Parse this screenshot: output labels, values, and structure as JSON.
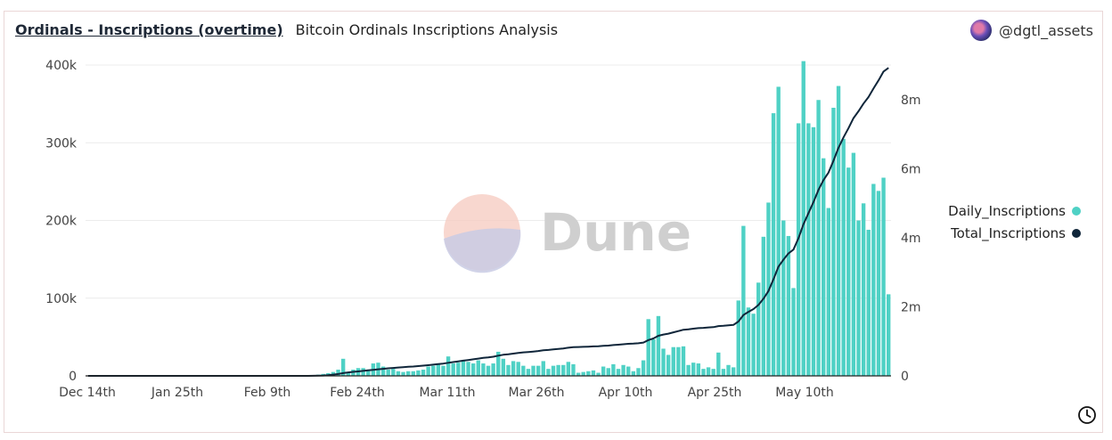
{
  "header": {
    "query_title": "Ordinals - Inscriptions (overtime)",
    "subtitle": "Bitcoin Ordinals Inscriptions Analysis",
    "author": "@dgtl_assets"
  },
  "watermark": "Dune",
  "colors": {
    "bar": "#4fd1c5",
    "line": "#10263a",
    "grid": "#ececec"
  },
  "icons": {
    "footer": "clock-icon"
  },
  "chart_data": {
    "type": "bar",
    "x_tick_labels": [
      "Dec 14th",
      "Jan 25th",
      "Feb 9th",
      "Feb 24th",
      "Mar 11th",
      "Mar 26th",
      "Apr 10th",
      "Apr 25th",
      "May 10th"
    ],
    "y_left": {
      "ticks": [
        0,
        100000,
        200000,
        300000,
        400000
      ],
      "tick_labels": [
        "0",
        "100k",
        "200k",
        "300k",
        "400k"
      ],
      "ylim": [
        0,
        400000
      ]
    },
    "y_right": {
      "ticks": [
        0,
        2000000,
        4000000,
        6000000,
        8000000
      ],
      "tick_labels": [
        "0",
        "2m",
        "4m",
        "6m",
        "8m"
      ],
      "ylim": [
        0,
        9000000
      ]
    },
    "legend": {
      "position": "right",
      "items": [
        "Daily_Inscriptions",
        "Total_Inscriptions"
      ]
    },
    "grid": true,
    "series": [
      {
        "name": "Daily_Inscriptions",
        "type": "bar",
        "axis": "left",
        "values": [
          0,
          0,
          0,
          0,
          0,
          0,
          0,
          0,
          0,
          0,
          0,
          0,
          0,
          0,
          0,
          0,
          0,
          0,
          0,
          0,
          0,
          0,
          0,
          0,
          0,
          0,
          0,
          0,
          0,
          0,
          0,
          0,
          0,
          0,
          0,
          0,
          0,
          0,
          0,
          0,
          0,
          0,
          0,
          0,
          200,
          800,
          1500,
          2500,
          3500,
          5000,
          8000,
          22000,
          5000,
          8000,
          10000,
          10000,
          8000,
          16000,
          17000,
          12000,
          8000,
          9000,
          6000,
          5000,
          6000,
          6000,
          7000,
          8000,
          12000,
          13000,
          16000,
          13000,
          25000,
          16000,
          17000,
          19000,
          18000,
          16000,
          20000,
          16000,
          13000,
          16000,
          31000,
          22000,
          14000,
          19000,
          18000,
          13000,
          9000,
          13000,
          13000,
          19000,
          9000,
          13000,
          14000,
          14000,
          18000,
          15000,
          4000,
          5000,
          6000,
          7000,
          4000,
          12000,
          10000,
          15000,
          9000,
          14000,
          12000,
          6000,
          10000,
          20000,
          73000,
          47000,
          77000,
          35000,
          27000,
          37000,
          37000,
          38000,
          14000,
          17000,
          16000,
          9000,
          11000,
          9000,
          30000,
          9000,
          14000,
          11000,
          97000,
          193000,
          88000,
          80000,
          120000,
          179000,
          223000,
          338000,
          372000,
          200000,
          180000,
          113000,
          325000,
          405000,
          325000,
          320000,
          355000,
          280000,
          216000,
          345000,
          373000,
          305000,
          268000,
          287000,
          200000,
          222000,
          188000,
          247000,
          238000,
          255000,
          105000
        ]
      },
      {
        "name": "Total_Inscriptions",
        "type": "line",
        "axis": "right",
        "values": [
          0,
          0,
          0,
          0,
          0,
          0,
          0,
          0,
          0,
          0,
          0,
          0,
          0,
          0,
          0,
          0,
          0,
          0,
          0,
          0,
          0,
          0,
          0,
          0,
          0,
          0,
          0,
          0,
          0,
          0,
          0,
          0,
          0,
          0,
          0,
          0,
          0,
          0,
          0,
          0,
          0,
          0,
          0,
          0,
          500,
          2000,
          5000,
          10000,
          20000,
          35000,
          55000,
          80000,
          100000,
          115000,
          130000,
          145000,
          160000,
          175000,
          190000,
          205000,
          218000,
          230000,
          242000,
          252000,
          262000,
          272000,
          283000,
          296000,
          310000,
          325000,
          340000,
          355000,
          380000,
          400000,
          420000,
          440000,
          460000,
          480000,
          500000,
          520000,
          535000,
          555000,
          585000,
          610000,
          625000,
          645000,
          665000,
          680000,
          690000,
          705000,
          720000,
          740000,
          750000,
          765000,
          780000,
          795000,
          815000,
          830000,
          835000,
          840000,
          846000,
          853000,
          857000,
          868000,
          878000,
          893000,
          902000,
          916000,
          928000,
          934000,
          944000,
          964000,
          1037000,
          1084000,
          1161000,
          1196000,
          1223000,
          1260000,
          1297000,
          1335000,
          1349000,
          1366000,
          1382000,
          1391000,
          1402000,
          1411000,
          1441000,
          1450000,
          1464000,
          1475000,
          1572000,
          1765000,
          1853000,
          1933000,
          2053000,
          2232000,
          2455000,
          2793000,
          3165000,
          3365000,
          3545000,
          3658000,
          3983000,
          4388000,
          4713000,
          5033000,
          5388000,
          5668000,
          5884000,
          6229000,
          6602000,
          6907000,
          7175000,
          7462000,
          7662000,
          7884000,
          8072000,
          8319000,
          8557000,
          8812000,
          8917000
        ]
      }
    ]
  }
}
